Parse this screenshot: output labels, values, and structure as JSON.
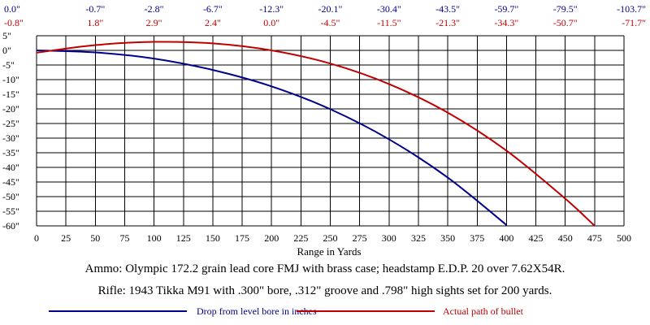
{
  "chart_data": {
    "type": "line",
    "xlabel": "Range in Yards",
    "ylabel": "",
    "xlim": [
      0,
      500
    ],
    "ylim": [
      -60,
      5
    ],
    "x_ticks": [
      0,
      25,
      50,
      75,
      100,
      125,
      150,
      175,
      200,
      225,
      250,
      275,
      300,
      325,
      350,
      375,
      400,
      425,
      450,
      475,
      500
    ],
    "y_ticks": [
      5,
      0,
      -5,
      -10,
      -15,
      -20,
      -25,
      -30,
      -35,
      -40,
      -45,
      -50,
      -55,
      -60
    ],
    "y_tick_labels": [
      "5\"",
      "0\"",
      "-5\"",
      "-10\"",
      "-15\"",
      "-20\"",
      "-25\"",
      "-30\"",
      "-35\"",
      "-40\"",
      "-45\"",
      "-50\"",
      "-55\"",
      "-60\""
    ],
    "grid": true,
    "legend_placement": "bottom",
    "top_labels": {
      "x": [
        0,
        50,
        100,
        150,
        200,
        250,
        300,
        350,
        400,
        450,
        500
      ],
      "drop": [
        "0.0\"",
        "-0.7\"",
        "-2.8\"",
        "-6.7\"",
        "-12.3\"",
        "-20.1\"",
        "-30.4\"",
        "-43.5\"",
        "-59.7\"",
        "-79.5\"",
        "-103.7\""
      ],
      "path": [
        "-0.8\"",
        "1.8\"",
        "2.9\"",
        "2.4\"",
        "0.0\"",
        "-4.5\"",
        "-11.5\"",
        "-21.3\"",
        "-34.3\"",
        "-50.7\"",
        "-71.7\""
      ]
    },
    "series": [
      {
        "name": "Drop from level bore in inches",
        "color": "#00008b",
        "x": [
          0,
          50,
          100,
          150,
          200,
          250,
          300,
          350,
          400
        ],
        "y": [
          0.0,
          -0.7,
          -2.8,
          -6.7,
          -12.3,
          -20.1,
          -30.4,
          -43.5,
          -59.7
        ]
      },
      {
        "name": "Actual path of bullet",
        "color": "#c00000",
        "x": [
          0,
          50,
          100,
          150,
          200,
          250,
          300,
          350,
          400,
          450,
          475
        ],
        "y": [
          -0.8,
          1.8,
          2.9,
          2.4,
          0.0,
          -4.5,
          -11.5,
          -21.3,
          -34.3,
          -50.7,
          -60.0
        ]
      }
    ]
  },
  "captions": {
    "ammo": "Ammo:  Olympic 172.2 grain lead core FMJ with brass case; headstamp E.D.P. 20 over 7.62X54R.",
    "rifle": "Rifle:  1943 Tikka M91 with .300\" bore, .312\" groove and .798\" high sights set for 200 yards."
  },
  "colors": {
    "drop": "#00008b",
    "path": "#c00000",
    "grid": "#000000"
  }
}
